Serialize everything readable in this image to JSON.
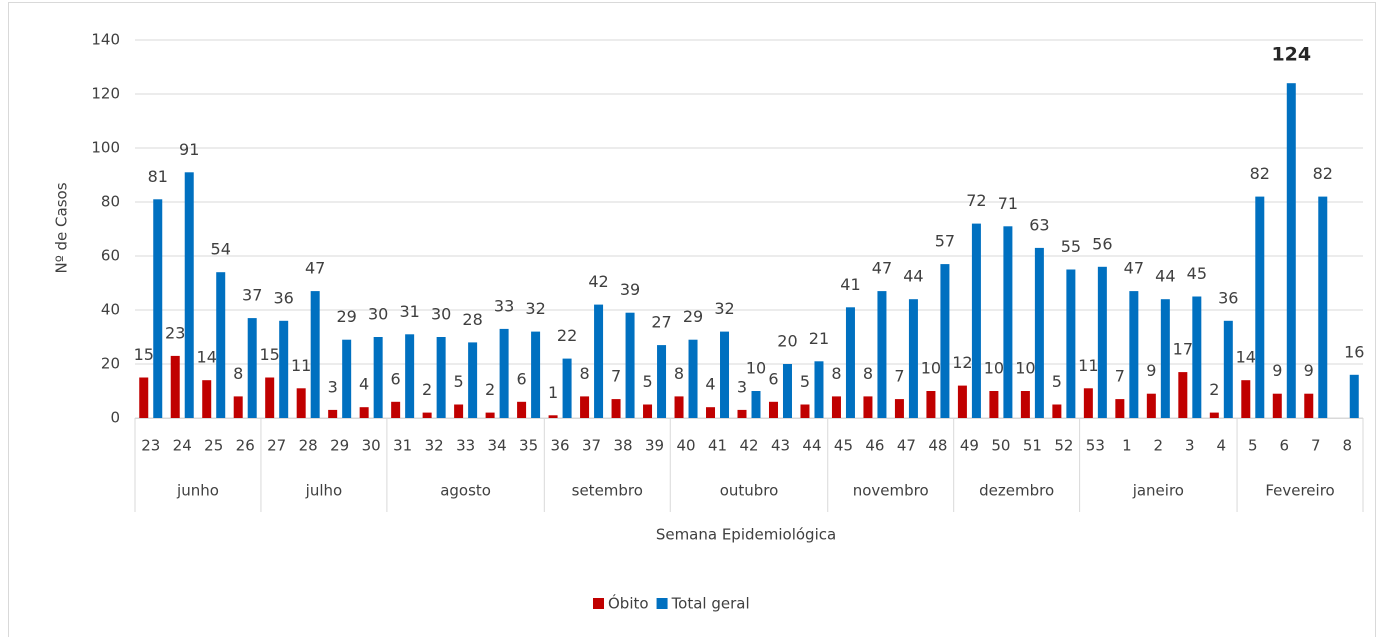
{
  "chart_data": {
    "type": "bar",
    "x_label": "Semana Epidemiológica",
    "y_label": "Nº de Casos",
    "categories": [
      "23",
      "24",
      "25",
      "26",
      "27",
      "28",
      "29",
      "30",
      "31",
      "32",
      "33",
      "34",
      "35",
      "36",
      "37",
      "38",
      "39",
      "40",
      "41",
      "42",
      "43",
      "44",
      "45",
      "46",
      "47",
      "48",
      "49",
      "50",
      "51",
      "52",
      "53",
      "1",
      "2",
      "3",
      "4",
      "5",
      "6",
      "7",
      "8"
    ],
    "months": [
      "junho",
      "junho",
      "junho",
      "junho",
      "julho",
      "julho",
      "julho",
      "julho",
      "agosto",
      "agosto",
      "agosto",
      "agosto",
      "agosto",
      "setembro",
      "setembro",
      "setembro",
      "setembro",
      "outubro",
      "outubro",
      "outubro",
      "outubro",
      "outubro",
      "novembro",
      "novembro",
      "novembro",
      "novembro",
      "dezembro",
      "dezembro",
      "dezembro",
      "dezembro",
      "janeiro",
      "janeiro",
      "janeiro",
      "janeiro",
      "janeiro",
      "Fevereiro",
      "Fevereiro",
      "Fevereiro",
      "Fevereiro"
    ],
    "series": [
      {
        "name": "Óbito",
        "color": "#c00000",
        "values": [
          15,
          23,
          14,
          8,
          15,
          11,
          3,
          4,
          6,
          2,
          5,
          2,
          6,
          1,
          8,
          7,
          5,
          8,
          4,
          3,
          6,
          5,
          8,
          8,
          7,
          10,
          12,
          10,
          10,
          5,
          11,
          7,
          9,
          17,
          2,
          14,
          9,
          9,
          null
        ]
      },
      {
        "name": "Total geral",
        "color": "#0070c0",
        "values": [
          81,
          91,
          54,
          37,
          36,
          47,
          29,
          30,
          31,
          30,
          28,
          33,
          32,
          22,
          42,
          39,
          27,
          29,
          32,
          10,
          20,
          21,
          41,
          47,
          44,
          57,
          72,
          71,
          63,
          55,
          56,
          47,
          44,
          45,
          36,
          82,
          124,
          82,
          16
        ]
      }
    ],
    "ylim": [
      0,
      140
    ],
    "yticks": [
      0,
      20,
      40,
      60,
      80,
      100,
      120,
      140
    ],
    "grid": true,
    "legend": "bottom"
  }
}
